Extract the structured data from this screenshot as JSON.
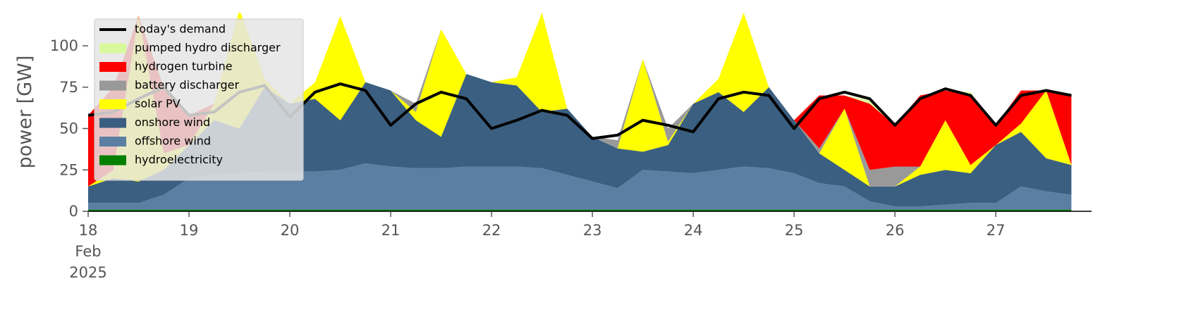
{
  "chart_data": {
    "type": "stacked-area",
    "ylabel": "power [GW]",
    "legend": "upper left",
    "x": [
      18,
      18.25,
      18.5,
      18.75,
      19,
      19.25,
      19.5,
      19.75,
      20,
      20.25,
      20.5,
      20.75,
      21,
      21.25,
      21.5,
      21.75,
      22,
      22.25,
      22.5,
      22.75,
      23,
      23.25,
      23.5,
      23.75,
      24,
      24.25,
      24.5,
      24.75,
      25,
      25.25,
      25.5,
      25.75,
      26,
      26.25,
      26.5,
      26.75,
      27,
      27.25,
      27.5,
      27.75
    ],
    "xlim": [
      18,
      27.95
    ],
    "xticks": [
      {
        "value": 18,
        "label": "18\nFeb\n2025"
      },
      19,
      20,
      21,
      22,
      23,
      24,
      25,
      26,
      27
    ],
    "ylim": [
      0,
      120
    ],
    "yticks": [
      0,
      25,
      50,
      75,
      100
    ],
    "series": [
      {
        "name": "hydroelectricity",
        "color": "#008000",
        "values": [
          1,
          1,
          1,
          1,
          1,
          1,
          1,
          1,
          1,
          1,
          1,
          1,
          1,
          1,
          1,
          1,
          1,
          1,
          1,
          1,
          1,
          1,
          1,
          1,
          1,
          1,
          1,
          1,
          1,
          1,
          1,
          1,
          1,
          1,
          1,
          1,
          1,
          1,
          1,
          1
        ]
      },
      {
        "name": "offshore wind",
        "color": "#5b7fa3",
        "values": [
          4,
          4,
          4,
          9,
          19,
          21,
          22,
          23,
          23,
          23,
          24,
          28,
          26,
          25,
          25,
          26,
          26,
          26,
          25,
          21,
          17,
          13,
          24,
          23,
          22,
          24,
          26,
          25,
          22,
          16,
          14,
          5,
          2,
          2,
          3,
          4,
          4,
          14,
          11,
          9
        ]
      },
      {
        "name": "onshore wind",
        "color": "#3b5f80",
        "values": [
          10,
          15,
          13,
          15,
          20,
          33,
          27,
          51,
          41,
          44,
          30,
          49,
          46,
          29,
          19,
          56,
          51,
          49,
          34,
          40,
          27,
          24,
          11,
          16,
          42,
          47,
          33,
          49,
          32,
          18,
          10,
          9,
          12,
          19,
          21,
          18,
          35,
          33,
          20,
          18
        ]
      },
      {
        "name": "solar PV",
        "color": "#ffff00",
        "values": [
          0,
          5,
          100,
          10,
          0,
          10,
          72,
          5,
          0,
          10,
          63,
          0,
          0,
          5,
          65,
          0,
          0,
          5,
          60,
          0,
          0,
          0,
          56,
          2,
          0,
          8,
          60,
          0,
          0,
          0,
          37,
          0,
          0,
          5,
          30,
          5,
          0,
          5,
          41,
          0
        ]
      },
      {
        "name": "battery discharger",
        "color": "#999999",
        "values": [
          0,
          0,
          0,
          0,
          0,
          0,
          0,
          0,
          0,
          0,
          0,
          0,
          0,
          5,
          0,
          0,
          0,
          0,
          0,
          0,
          0,
          5,
          0,
          8,
          0,
          0,
          0,
          0,
          0,
          3,
          0,
          10,
          12,
          0,
          0,
          0,
          0,
          0,
          0,
          0
        ]
      },
      {
        "name": "hydrogen turbine",
        "color": "#ff0000",
        "values": [
          43,
          50,
          0,
          40,
          18,
          0,
          0,
          0,
          0,
          0,
          0,
          0,
          0,
          0,
          0,
          0,
          0,
          0,
          0,
          0,
          0,
          0,
          0,
          0,
          0,
          0,
          0,
          0,
          0,
          32,
          8,
          40,
          25,
          43,
          18,
          42,
          12,
          20,
          0,
          42
        ]
      },
      {
        "name": "pumped hydro discharger",
        "color": "#d9f99d",
        "values": [
          0,
          0,
          0,
          0,
          0,
          0,
          0,
          0,
          0,
          0,
          0,
          0,
          0,
          0,
          0,
          0,
          0,
          0,
          0,
          0,
          0,
          0,
          0,
          0,
          0,
          0,
          0,
          0,
          0,
          0,
          0,
          2,
          0,
          0,
          0,
          2,
          0,
          0,
          0,
          0
        ]
      }
    ],
    "demand": {
      "name": "today's demand",
      "color": "#000000",
      "values": [
        58,
        60,
        68,
        75,
        58,
        60,
        72,
        76,
        57,
        72,
        77,
        73,
        52,
        65,
        72,
        68,
        50,
        55,
        61,
        58,
        44,
        46,
        55,
        52,
        48,
        68,
        72,
        70,
        50,
        68,
        72,
        68,
        52,
        68,
        74,
        70,
        52,
        70,
        73,
        70
      ]
    }
  }
}
